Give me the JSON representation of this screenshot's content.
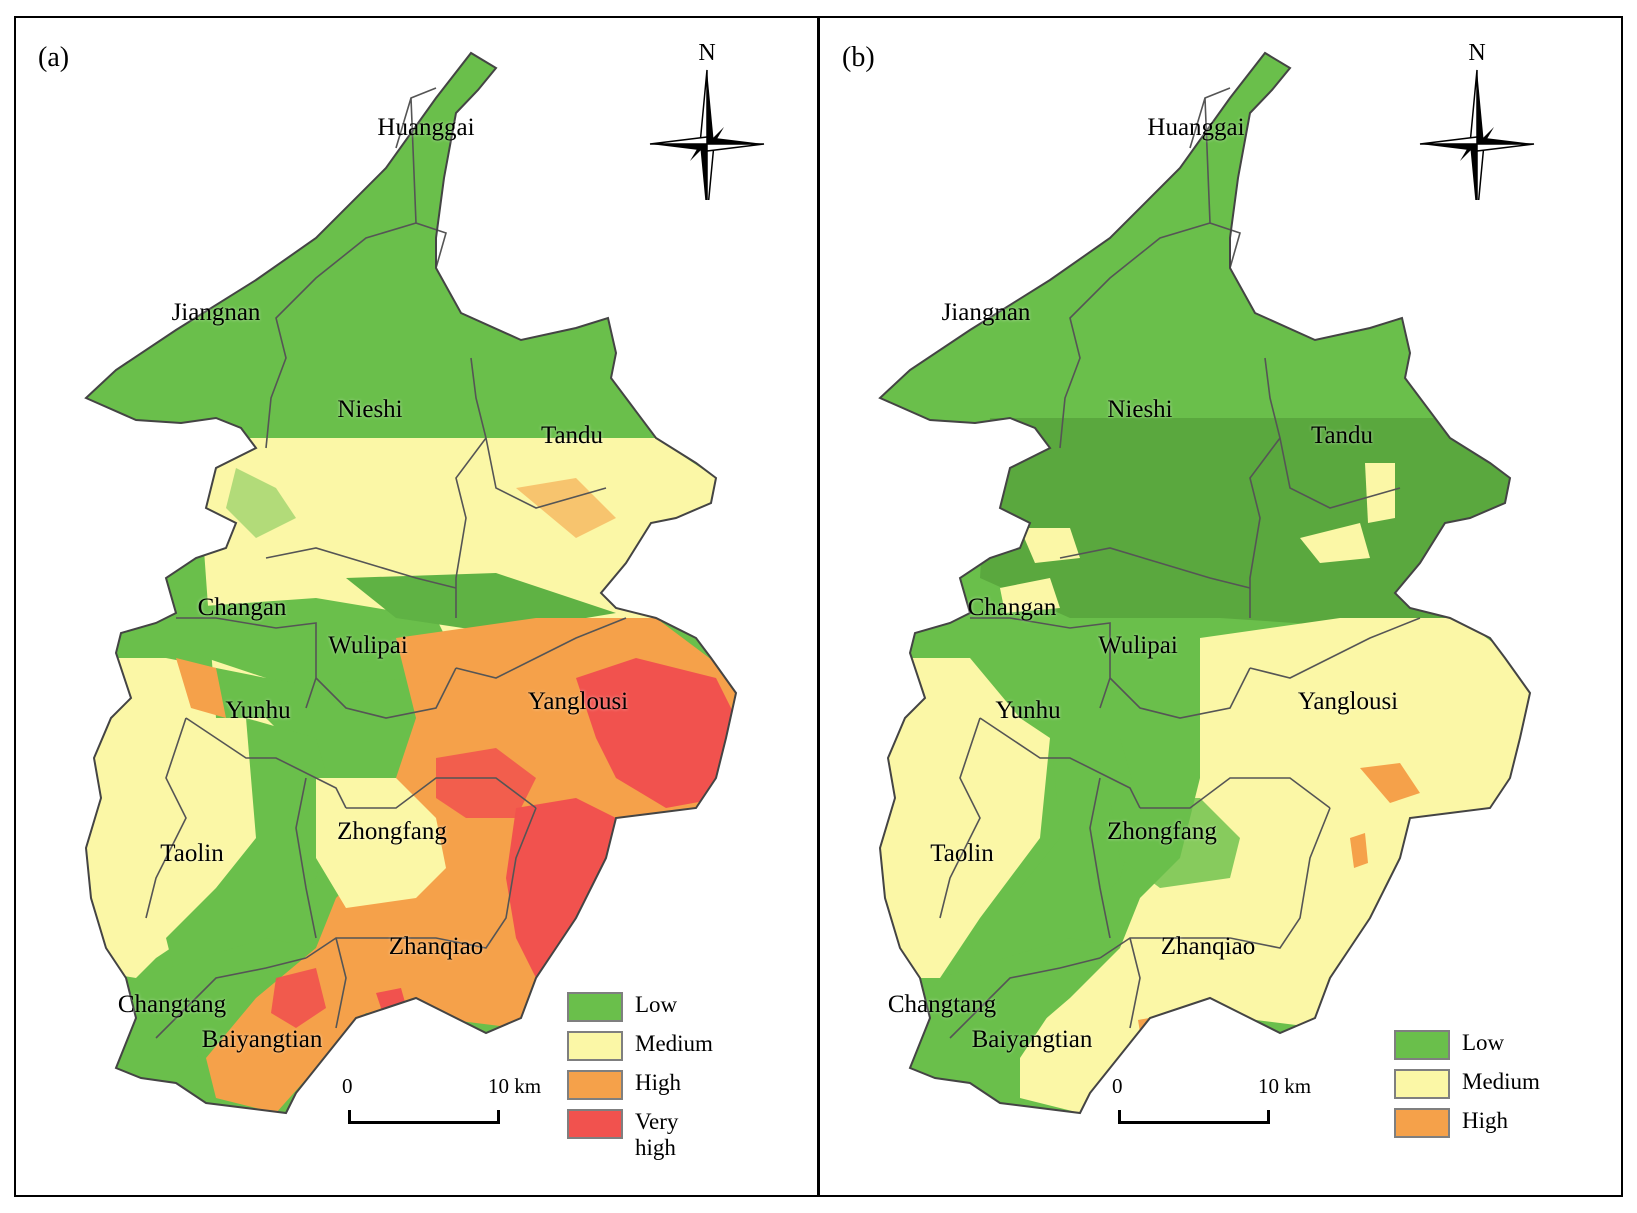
{
  "panels": [
    {
      "label": "(a)",
      "north_label": "N",
      "districts": {
        "huanggai": "Huanggai",
        "jiangnan": "Jiangnan",
        "nieshi": "Nieshi",
        "tandu": "Tandu",
        "changan": "Changan",
        "wulipai": "Wulipai",
        "yunhu": "Yunhu",
        "yanglousi": "Yanglousi",
        "taolin": "Taolin",
        "zhongfang": "Zhongfang",
        "zhanqiao": "Zhanqiao",
        "changtang": "Changtang",
        "baiyangtian": "Baiyangtian"
      },
      "legend": [
        {
          "label": "Low",
          "color": "#6abf4b"
        },
        {
          "label": "Medium",
          "color": "#fbf7a6"
        },
        {
          "label": "High",
          "color": "#f5a14a"
        },
        {
          "label": "Very high",
          "color": "#f1524e"
        }
      ],
      "scale": {
        "start": "0",
        "end": "10 km"
      }
    },
    {
      "label": "(b)",
      "north_label": "N",
      "districts": {
        "huanggai": "Huanggai",
        "jiangnan": "Jiangnan",
        "nieshi": "Nieshi",
        "tandu": "Tandu",
        "changan": "Changan",
        "wulipai": "Wulipai",
        "yunhu": "Yunhu",
        "yanglousi": "Yanglousi",
        "taolin": "Taolin",
        "zhongfang": "Zhongfang",
        "zhanqiao": "Zhanqiao",
        "changtang": "Changtang",
        "baiyangtian": "Baiyangtian"
      },
      "legend": [
        {
          "label": "Low",
          "color": "#6abf4b"
        },
        {
          "label": "Medium",
          "color": "#fbf7a6"
        },
        {
          "label": "High",
          "color": "#f5a14a"
        }
      ],
      "scale": {
        "start": "0",
        "end": "10 km"
      }
    }
  ]
}
